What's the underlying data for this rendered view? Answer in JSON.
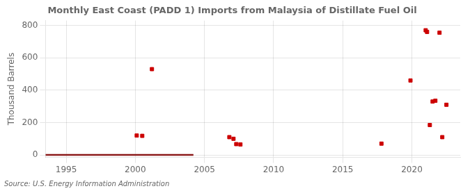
{
  "chart_data": {
    "type": "scatter",
    "title": "Monthly East Coast (PADD 1) Imports from Malaysia of Distillate Fuel Oil",
    "ylabel": "Thousand Barrels",
    "source": "Source: U.S. Energy Information Administration",
    "xlim": [
      1993.5,
      2023.5
    ],
    "xticks": [
      1995,
      2000,
      2005,
      2010,
      2015,
      2020
    ],
    "ylim": [
      -15,
      830
    ],
    "yticks": [
      0,
      200,
      400,
      600,
      800
    ],
    "grid": true,
    "series": [
      {
        "type": "line",
        "color": "#8B1A1A",
        "x": [
          1993.5,
          2004.2
        ],
        "values": [
          0,
          0
        ]
      },
      {
        "type": "scatter",
        "color": "#cc0000",
        "marker": "square",
        "x": [
          2000.1,
          2000.5,
          2001.2,
          2006.8,
          2007.1,
          2007.3,
          2007.6,
          2017.8,
          2019.9,
          2021.0,
          2021.1,
          2021.3,
          2021.5,
          2021.7,
          2022.0,
          2022.2,
          2022.5
        ],
        "values": [
          120,
          118,
          530,
          110,
          100,
          67,
          65,
          70,
          460,
          770,
          760,
          185,
          330,
          335,
          755,
          110,
          310
        ]
      }
    ]
  }
}
